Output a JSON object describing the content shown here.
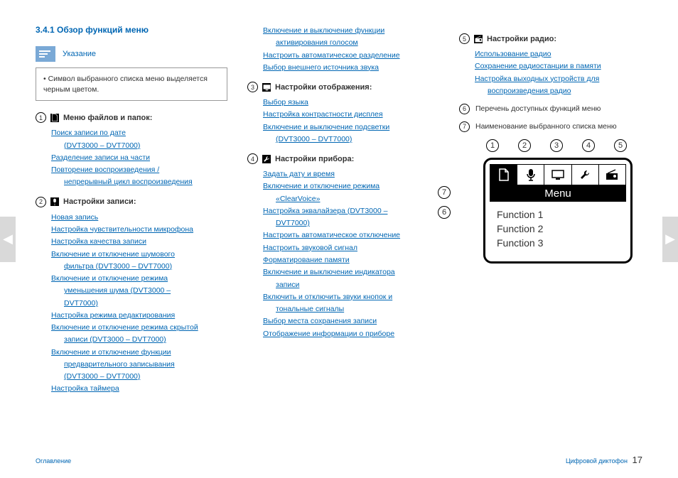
{
  "section_title": "3.4.1   Обзор функций меню",
  "note": {
    "label": "Указание",
    "body": "•  Символ выбранного списка меню выделяется черным цветом."
  },
  "col1_groups": [
    {
      "num": "1",
      "icon": "file",
      "title": "Меню файлов и папок:",
      "links": [
        {
          "t": "Поиск записи по дате",
          "i": 0
        },
        {
          "t": "(DVT3000  –  DVT7000)",
          "i": 1
        },
        {
          "t": "Разделение записи на части",
          "i": 0
        },
        {
          "t": "Повторение воспроизведения /",
          "i": 0
        },
        {
          "t": "непрерывный цикл воспроизведения",
          "i": 1
        }
      ]
    },
    {
      "num": "2",
      "icon": "mic",
      "title": "Настройки записи:",
      "links": [
        {
          "t": "Новая запись",
          "i": 0
        },
        {
          "t": "Настройка чувствительности микрофона",
          "i": 0
        },
        {
          "t": "Настройка качества записи",
          "i": 0
        },
        {
          "t": "Включение и отключение шумового",
          "i": 0
        },
        {
          "t": "фильтра (DVT3000 – DVT7000)",
          "i": 1
        },
        {
          "t": "Включение и отключение режима",
          "i": 0
        },
        {
          "t": "уменьшения шума (DVT3000 –",
          "i": 1
        },
        {
          "t": "DVT7000)",
          "i": 1
        },
        {
          "t": "Настройка режима редактирования",
          "i": 0
        },
        {
          "t": "Включение и отключение режима скрытой",
          "i": 0
        },
        {
          "t": "записи (DVT3000 – DVT7000)",
          "i": 1
        },
        {
          "t": "Включение и отключение функции",
          "i": 0
        },
        {
          "t": "предварительного записывания",
          "i": 1
        },
        {
          "t": "(DVT3000  –  DVT7000)",
          "i": 1
        },
        {
          "t": "Настройка таймера",
          "i": 0
        }
      ]
    }
  ],
  "col2_top_links": [
    {
      "t": "Включение и выключение функции",
      "i": 0
    },
    {
      "t": "активирования голосом",
      "i": 1
    },
    {
      "t": "Настроить автоматическое разделение",
      "i": 0
    },
    {
      "t": "Выбор внешнего источника звука",
      "i": 0
    }
  ],
  "col2_groups": [
    {
      "num": "3",
      "icon": "display",
      "title": "Настройки отображения:",
      "links": [
        {
          "t": "Выбор языка",
          "i": 0
        },
        {
          "t": "Настройка контрастности дисплея",
          "i": 0
        },
        {
          "t": "Включение и выключение подсветки",
          "i": 0
        },
        {
          "t": "(DVT3000 – DVT7000)",
          "i": 1
        }
      ]
    },
    {
      "num": "4",
      "icon": "wrench",
      "title": "Настройки прибора:",
      "links": [
        {
          "t": "Задать дату и время",
          "i": 0
        },
        {
          "t": "Включение и отключение режима",
          "i": 0
        },
        {
          "t": "«ClearVoice»",
          "i": 1
        },
        {
          "t": "Настройка эквалайзера (DVT3000 –",
          "i": 0
        },
        {
          "t": "DVT7000)",
          "i": 1
        },
        {
          "t": "Настроить автоматическое отключение",
          "i": 0
        },
        {
          "t": "Настроить звуковой сигнал",
          "i": 0
        },
        {
          "t": "Форматирование памяти",
          "i": 0
        },
        {
          "t": "Включение и выключение индикатора",
          "i": 0
        },
        {
          "t": "записи",
          "i": 1
        },
        {
          "t": "Включить и отключить звуки кнопок и",
          "i": 0
        },
        {
          "t": "тональные сигналы",
          "i": 1
        },
        {
          "t": "Выбор места сохранения записи",
          "i": 0
        },
        {
          "t": "Отображение информации о приборе",
          "i": 0
        }
      ]
    }
  ],
  "col3_group": {
    "num": "5",
    "icon": "radio",
    "title": "Настройки радио:",
    "links": [
      {
        "t": "Использование радио",
        "i": 0
      },
      {
        "t": "Сохранение радиостанции в памяти",
        "i": 0
      },
      {
        "t": "Настройка выходных устройств для",
        "i": 0
      },
      {
        "t": "воспроизведения радио",
        "i": 1
      }
    ]
  },
  "col3_items": [
    {
      "num": "6",
      "text": "Перечень доступных функций меню"
    },
    {
      "num": "7",
      "text": "Наименование выбранного списка меню"
    }
  ],
  "diagram": {
    "top_nums": [
      "1",
      "2",
      "3",
      "4",
      "5"
    ],
    "side_nums": [
      "7",
      "6"
    ],
    "menu_label": "Menu",
    "functions": [
      "Function 1",
      "Function 2",
      "Function 3"
    ]
  },
  "footer": {
    "left": "Оглавление",
    "right": "Цифровой диктофон",
    "page": "17"
  },
  "arrows": {
    "left": "◀",
    "right": "▶"
  }
}
